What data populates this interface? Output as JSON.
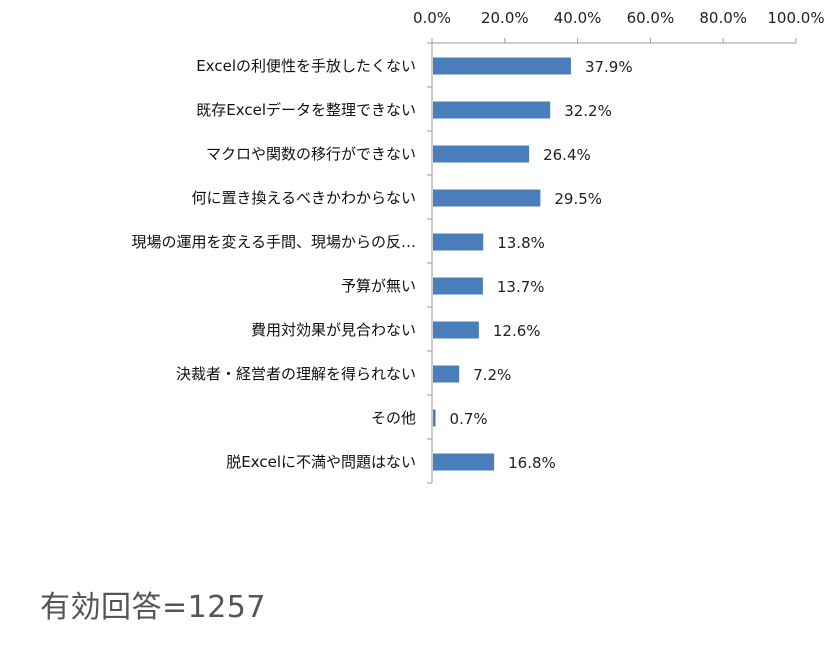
{
  "chart_data": {
    "type": "bar",
    "orientation": "horizontal",
    "categories": [
      "Excelの利便性を手放したくない",
      "既存Excelデータを整理できない",
      "マクロや関数の移行ができない",
      "何に置き換えるべきかわからない",
      "現場の運用を変える手間、現場からの反…",
      "予算が無い",
      "費用対効果が見合わない",
      "決裁者・経営者の理解を得られない",
      "その他",
      "脱Excelに不満や問題はない"
    ],
    "values": [
      37.9,
      32.2,
      26.4,
      29.5,
      13.8,
      13.7,
      12.6,
      7.2,
      0.7,
      16.8
    ],
    "data_labels": [
      "37.9%",
      "32.2%",
      "26.4%",
      "29.5%",
      "13.8%",
      "13.7%",
      "12.6%",
      "7.2%",
      "0.7%",
      "16.8%"
    ],
    "x_ticks": [
      "0.0%",
      "20.0%",
      "40.0%",
      "60.0%",
      "80.0%",
      "100.0%"
    ],
    "xlim": [
      0,
      100
    ],
    "x_axis_position": "top",
    "grid": false,
    "legend": "none",
    "bar_color": "#4a7ebb"
  },
  "footnote": "有効回答=1257"
}
